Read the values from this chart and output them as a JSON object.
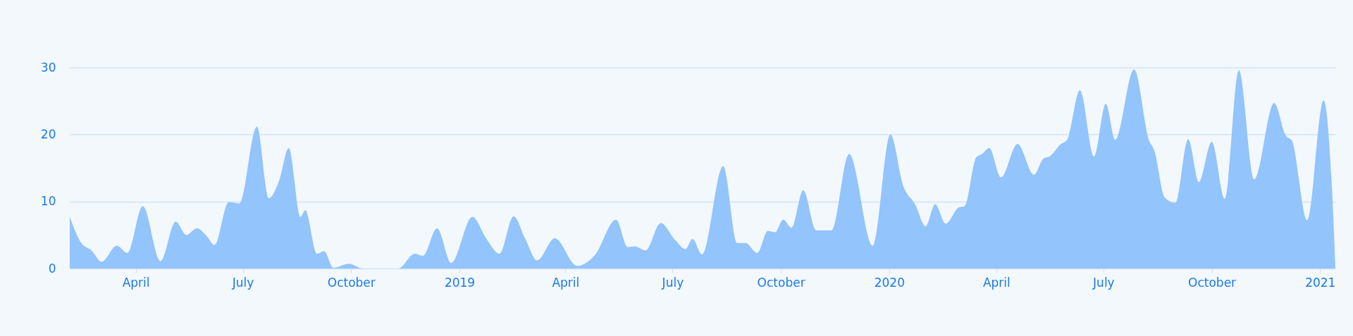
{
  "chart_data": {
    "type": "area",
    "x": [
      "2018-02-04",
      "2018-02-13",
      "2018-02-23",
      "2018-03-03",
      "2018-03-16",
      "2018-03-25",
      "2018-04-07",
      "2018-04-22",
      "2018-05-05",
      "2018-05-14",
      "2018-05-23",
      "2018-05-31",
      "2018-06-07",
      "2018-06-19",
      "2018-06-28",
      "2018-07-13",
      "2018-07-23",
      "2018-08-01",
      "2018-08-09",
      "2018-08-19",
      "2018-08-23",
      "2018-09-02",
      "2018-09-08",
      "2018-09-16",
      "2018-09-29",
      "2018-10-11",
      "2018-11-10",
      "2018-11-24",
      "2018-12-01",
      "2018-12-13",
      "2018-12-25",
      "2019-01-12",
      "2019-01-24",
      "2019-02-04",
      "2019-02-16",
      "2019-02-26",
      "2019-03-08",
      "2019-03-23",
      "2019-04-11",
      "2019-04-26",
      "2019-05-14",
      "2019-05-24",
      "2019-05-30",
      "2019-06-08",
      "2019-06-21",
      "2019-07-03",
      "2019-07-12",
      "2019-07-18",
      "2019-07-26",
      "2019-08-13",
      "2019-08-25",
      "2019-09-01",
      "2019-09-11",
      "2019-09-20",
      "2019-09-26",
      "2019-10-03",
      "2019-10-10",
      "2019-10-20",
      "2019-10-31",
      "2019-11-13",
      "2019-11-28",
      "2019-12-18",
      "2020-01-02",
      "2020-01-13",
      "2020-01-23",
      "2020-02-01",
      "2020-02-09",
      "2020-02-18",
      "2020-02-29",
      "2020-03-05",
      "2020-03-15",
      "2020-03-20",
      "2020-03-26",
      "2020-04-05",
      "2020-04-19",
      "2020-05-03",
      "2020-05-11",
      "2020-05-16",
      "2020-05-26",
      "2020-05-31",
      "2020-06-11",
      "2020-06-23",
      "2020-07-03",
      "2020-07-11",
      "2020-07-27",
      "2020-08-09",
      "2020-08-13",
      "2020-08-22",
      "2020-08-31",
      "2020-09-11",
      "2020-09-20",
      "2020-10-01",
      "2020-10-12",
      "2020-10-24",
      "2020-11-06",
      "2020-11-23",
      "2020-12-03",
      "2020-12-08",
      "2020-12-21",
      "2021-01-04",
      "2021-01-11",
      "2021-01-14"
    ],
    "series": [
      {
        "color": "#93c4fb",
        "values": [
          7.7,
          4.0,
          2.6,
          1.0,
          3.4,
          2.3,
          9.3,
          1.1,
          7.0,
          5.0,
          6.0,
          4.9,
          3.5,
          9.9,
          9.7,
          21.2,
          10.5,
          13.2,
          18.0,
          7.7,
          8.7,
          2.2,
          2.6,
          0.1,
          0.7,
          0,
          0,
          2.2,
          1.9,
          6.0,
          0.8,
          7.7,
          4.4,
          2.2,
          7.8,
          4.4,
          1.2,
          4.5,
          0.4,
          2.0,
          7.3,
          3.2,
          3.3,
          2.7,
          6.8,
          4.3,
          2.9,
          4.4,
          2.1,
          15.3,
          3.8,
          3.8,
          2.3,
          5.6,
          5.4,
          7.3,
          6.1,
          11.7,
          5.7,
          5.7,
          17.1,
          3.4,
          20.0,
          12.3,
          9.6,
          6.3,
          9.6,
          6.7,
          9.1,
          9.3,
          16.6,
          17.1,
          18.0,
          13.6,
          18.6,
          14.0,
          16.4,
          16.7,
          18.6,
          19.2,
          26.6,
          16.7,
          24.6,
          19.2,
          29.7,
          19.0,
          17.7,
          10.6,
          9.8,
          19.3,
          12.9,
          18.9,
          10.4,
          29.6,
          13.3,
          24.7,
          19.8,
          19.1,
          7.2,
          25.1,
          12.3,
          0.1
        ]
      }
    ],
    "xlim": [
      "2018-02-04",
      "2021-01-14"
    ],
    "xticks": [
      {
        "value": "2018-04-01",
        "label": "April"
      },
      {
        "value": "2018-07-01",
        "label": "July"
      },
      {
        "value": "2018-10-01",
        "label": "October"
      },
      {
        "value": "2019-01-01",
        "label": "2019"
      },
      {
        "value": "2019-04-01",
        "label": "April"
      },
      {
        "value": "2019-07-01",
        "label": "July"
      },
      {
        "value": "2019-10-01",
        "label": "October"
      },
      {
        "value": "2020-01-01",
        "label": "2020"
      },
      {
        "value": "2020-04-01",
        "label": "April"
      },
      {
        "value": "2020-07-01",
        "label": "July"
      },
      {
        "value": "2020-10-01",
        "label": "October"
      },
      {
        "value": "2021-01-01",
        "label": "2021"
      }
    ],
    "ylim": [
      0,
      30
    ],
    "yticks": [
      0,
      10,
      20,
      30
    ],
    "grid": "y"
  }
}
